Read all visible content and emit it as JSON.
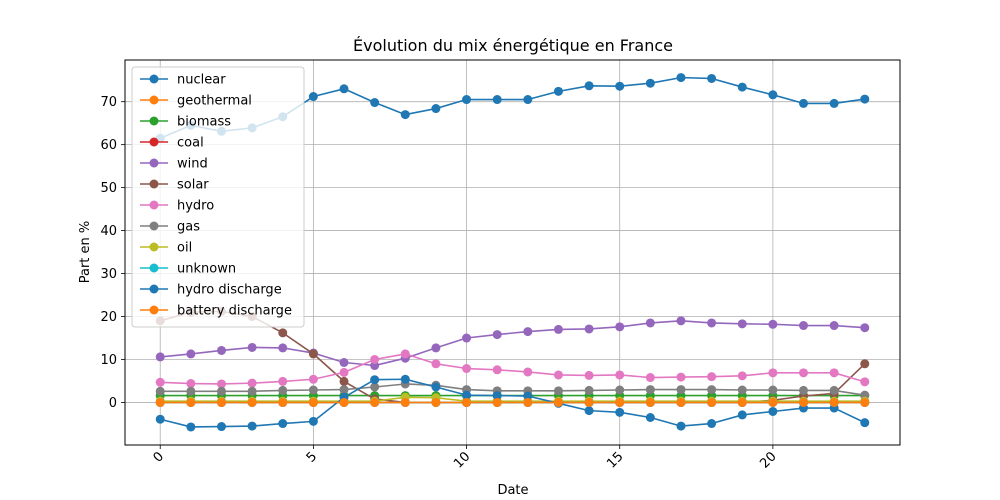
{
  "chart_data": {
    "type": "line",
    "title": "Évolution du mix énergétique en France",
    "xlabel": "Date",
    "ylabel": "Part en %",
    "xlim": [
      -1.15,
      24.15
    ],
    "ylim": [
      -9.9,
      79.7
    ],
    "xticks": [
      0,
      5,
      10,
      15,
      20
    ],
    "yticks": [
      0,
      10,
      20,
      30,
      40,
      50,
      60,
      70
    ],
    "grid": true,
    "legend_position": "top-left",
    "x": [
      0,
      1,
      2,
      3,
      4,
      5,
      6,
      7,
      8,
      9,
      10,
      11,
      12,
      13,
      14,
      15,
      16,
      17,
      18,
      19,
      20,
      21,
      22,
      23
    ],
    "series": [
      {
        "name": "nuclear",
        "color": "#1f77b4",
        "values": [
          61.5,
          64.5,
          63.1,
          63.9,
          66.5,
          71.2,
          73.0,
          69.8,
          67.0,
          68.4,
          70.5,
          70.5,
          70.5,
          72.4,
          73.7,
          73.6,
          74.3,
          75.6,
          75.4,
          73.4,
          71.6,
          69.6,
          69.6,
          70.6
        ]
      },
      {
        "name": "geothermal",
        "color": "#ff7f0e",
        "values": [
          0,
          0,
          0,
          0,
          0,
          0,
          0,
          0,
          0,
          0,
          0,
          0,
          0,
          0,
          0,
          0,
          0,
          0,
          0,
          0,
          0,
          0,
          0,
          0
        ]
      },
      {
        "name": "biomass",
        "color": "#2ca02c",
        "values": [
          1.6,
          1.6,
          1.6,
          1.6,
          1.6,
          1.6,
          1.6,
          1.6,
          1.6,
          1.6,
          1.6,
          1.6,
          1.6,
          1.6,
          1.6,
          1.6,
          1.6,
          1.6,
          1.6,
          1.6,
          1.6,
          1.6,
          1.6,
          1.6
        ]
      },
      {
        "name": "coal",
        "color": "#d62728",
        "values": [
          0,
          0,
          0,
          0,
          0,
          0,
          0,
          0,
          0,
          0,
          0,
          0,
          0,
          0,
          0,
          0,
          0,
          0,
          0,
          0,
          0,
          0,
          0,
          0
        ]
      },
      {
        "name": "wind",
        "color": "#9467bd",
        "values": [
          10.6,
          11.3,
          12.1,
          12.8,
          12.7,
          11.5,
          9.3,
          8.6,
          10.3,
          12.7,
          15.0,
          15.8,
          16.5,
          17.0,
          17.1,
          17.6,
          18.5,
          19.0,
          18.5,
          18.3,
          18.2,
          17.9,
          17.9,
          17.4
        ]
      },
      {
        "name": "solar",
        "color": "#8c564b",
        "values": [
          19.0,
          21.0,
          21.2,
          20.0,
          16.2,
          11.3,
          4.9,
          0.8,
          0,
          0,
          0,
          0,
          0,
          0,
          0,
          0,
          0,
          0,
          0,
          0,
          0.5,
          1.5,
          2.1,
          9.0
        ]
      },
      {
        "name": "hydro",
        "color": "#e377c2",
        "values": [
          4.7,
          4.4,
          4.3,
          4.5,
          4.9,
          5.4,
          7.0,
          10.0,
          11.3,
          9.0,
          7.9,
          7.6,
          7.1,
          6.4,
          6.3,
          6.4,
          5.8,
          5.9,
          6.0,
          6.2,
          6.9,
          6.9,
          6.9,
          4.8
        ]
      },
      {
        "name": "gas",
        "color": "#7f7f7f",
        "values": [
          2.6,
          2.6,
          2.6,
          2.6,
          2.8,
          2.9,
          3.0,
          3.6,
          4.3,
          4.0,
          3.0,
          2.7,
          2.7,
          2.7,
          2.8,
          2.9,
          3.0,
          3.0,
          3.0,
          2.9,
          2.9,
          2.8,
          2.8,
          1.7
        ]
      },
      {
        "name": "oil",
        "color": "#bcbd22",
        "values": [
          0.3,
          0.3,
          0.3,
          0.3,
          0.3,
          0.3,
          0.3,
          0.3,
          1.2,
          1.1,
          0.3,
          0.3,
          0.3,
          0.3,
          0.3,
          0.3,
          0.3,
          0.3,
          0.3,
          0.3,
          0.3,
          0.3,
          0.3,
          0.3
        ]
      },
      {
        "name": "unknown",
        "color": "#17becf",
        "values": [
          0,
          0,
          0,
          0,
          0,
          0,
          0,
          0,
          0,
          0,
          0,
          0,
          0,
          0,
          0,
          0,
          0,
          0,
          0,
          0,
          0,
          0,
          0,
          0
        ]
      },
      {
        "name": "hydro discharge",
        "color": "#1f77b4",
        "values": [
          -3.9,
          -5.7,
          -5.6,
          -5.5,
          -4.9,
          -4.4,
          1.2,
          5.3,
          5.4,
          3.6,
          1.7,
          1.6,
          1.5,
          -0.2,
          -1.9,
          -2.3,
          -3.5,
          -5.5,
          -4.9,
          -2.9,
          -2.1,
          -1.3,
          -1.3,
          -4.7
        ]
      },
      {
        "name": "battery discharge",
        "color": "#ff7f0e",
        "values": [
          0,
          0,
          0,
          0,
          0,
          0,
          0,
          0,
          0,
          0,
          0,
          0,
          0,
          0,
          0,
          0,
          0,
          0,
          0,
          0,
          0,
          0,
          0,
          0
        ]
      }
    ]
  }
}
